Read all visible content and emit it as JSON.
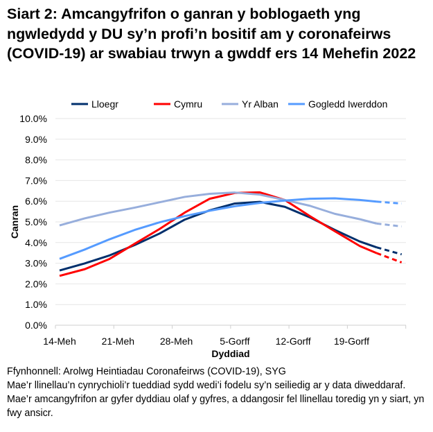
{
  "chart_data": {
    "type": "line",
    "title": "Siart 2: Amcangyfrifon o ganran y boblogaeth yng ngwledydd y DU sy’n profi’n bositif am y coronafeirws (COVID-19) ar swabiau trwyn a gwddf ers 14 Mehefin 2022",
    "xlabel": "Dyddiad",
    "ylabel": "Canran",
    "ylim": [
      0,
      10
    ],
    "yticks": [
      "0.0%",
      "1.0%",
      "2.0%",
      "3.0%",
      "4.0%",
      "5.0%",
      "6.0%",
      "7.0%",
      "8.0%",
      "9.0%",
      "10.0%"
    ],
    "xticks": [
      "14-Meh",
      "21-Meh",
      "28-Meh",
      "5-Gorff",
      "12-Gorff",
      "19-Gorff"
    ],
    "grid": true,
    "legend": "top",
    "x_days_since_14_Meh_note_removed": null,
    "x": [
      "14-Meh",
      "17-Meh",
      "20-Meh",
      "23-Meh",
      "26-Meh",
      "29-Meh",
      "2-Gorff",
      "5-Gorff",
      "8-Gorff",
      "11-Gorff",
      "14-Gorff",
      "17-Gorff",
      "20-Gorff",
      "22-Gorff",
      "25-Gorff"
    ],
    "dashed_from": "22-Gorff",
    "series": [
      {
        "name": "Lloegr",
        "color": "#002f6c",
        "values": [
          2.65,
          2.99,
          3.38,
          3.88,
          4.44,
          5.11,
          5.56,
          5.89,
          5.97,
          5.73,
          5.22,
          4.61,
          4.05,
          3.77,
          3.43
        ]
      },
      {
        "name": "Cymru",
        "color": "#ff0000",
        "values": [
          2.39,
          2.71,
          3.21,
          3.94,
          4.66,
          5.45,
          6.12,
          6.4,
          6.43,
          6.06,
          5.28,
          4.55,
          3.83,
          3.49,
          3.04
        ]
      },
      {
        "name": "Yr Alban",
        "color": "#97aedc",
        "values": [
          4.83,
          5.17,
          5.45,
          5.69,
          5.95,
          6.21,
          6.36,
          6.42,
          6.32,
          6.06,
          5.78,
          5.39,
          5.13,
          4.92,
          4.78
        ]
      },
      {
        "name": "Gogledd Iwerddon",
        "color": "#559bff",
        "values": [
          3.21,
          3.66,
          4.16,
          4.61,
          4.98,
          5.28,
          5.54,
          5.76,
          5.92,
          6.03,
          6.12,
          6.14,
          6.06,
          5.98,
          5.89
        ]
      }
    ]
  },
  "footer": {
    "source": "Ffynhonnell: Arolwg Heintiadau Coronafeirws (COVID-19), SYG",
    "note": "Mae’r llinellau’n cynrychioli’r tueddiad sydd wedi’i fodelu sy’n seiliedig ar y data diweddaraf. Mae’r amcangyfrifon ar gyfer dyddiau olaf y gyfres, a ddangosir fel llinellau toredig yn y siart, yn fwy ansicr."
  }
}
